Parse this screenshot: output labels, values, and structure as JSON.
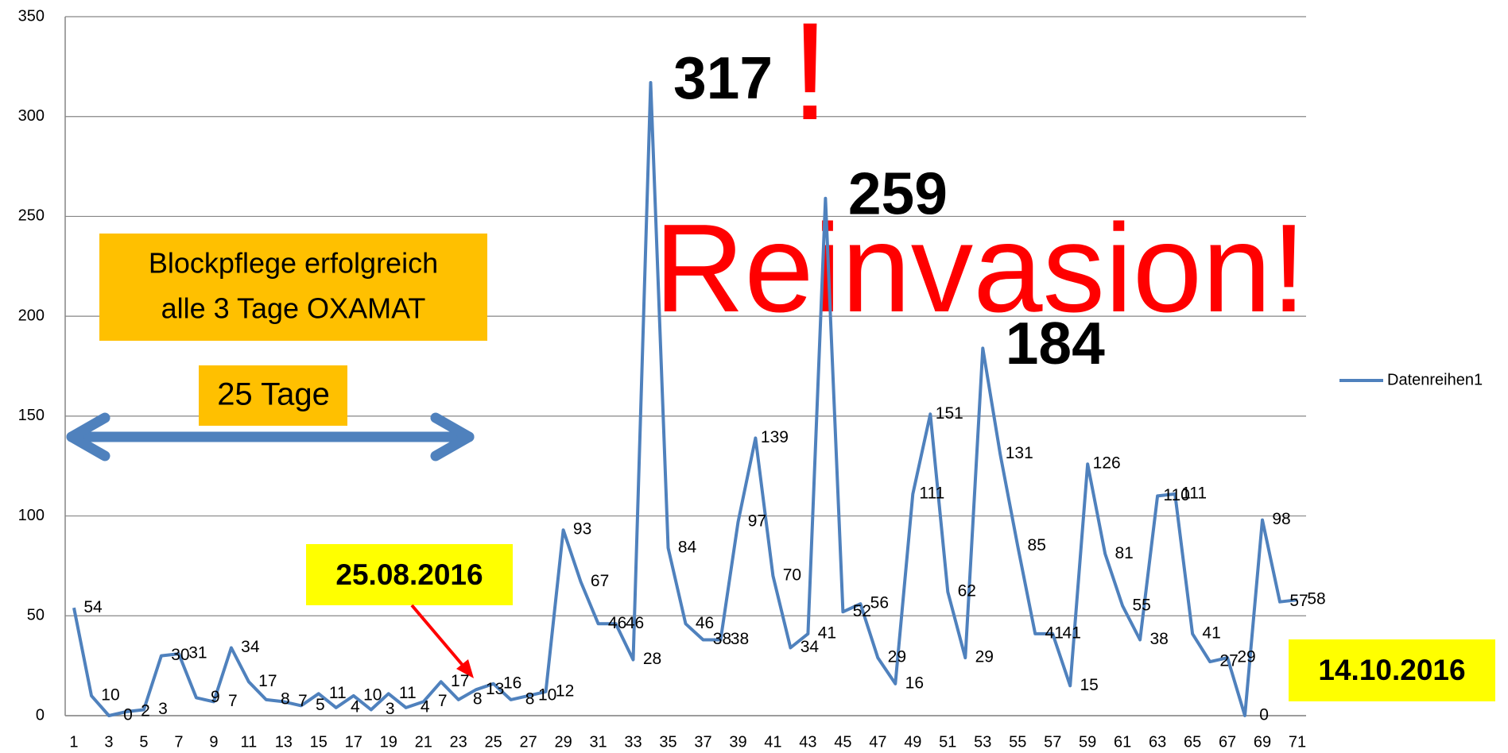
{
  "chart_data": {
    "type": "line",
    "categories": [
      "1",
      null,
      "3",
      null,
      "5",
      null,
      "7",
      null,
      "9",
      null,
      "11",
      null,
      "13",
      null,
      "15",
      null,
      "17",
      null,
      "19",
      null,
      "21",
      null,
      "23",
      null,
      "25",
      null,
      "27",
      null,
      "29",
      null,
      "31",
      null,
      "33",
      null,
      "35",
      null,
      "37",
      null,
      "39",
      null,
      "41",
      null,
      "43",
      null,
      "45",
      null,
      "47",
      null,
      "49",
      null,
      "51",
      null,
      "53",
      null,
      "55",
      null,
      "57",
      null,
      "59",
      null,
      "61",
      null,
      "63",
      null,
      "65",
      null,
      "67",
      null,
      "69",
      null,
      "71"
    ],
    "series": [
      {
        "name": "Datenreihen1",
        "color": "#4f81bd",
        "values": [
          54,
          10,
          0,
          2,
          3,
          30,
          31,
          9,
          7,
          34,
          17,
          8,
          7,
          5,
          11,
          4,
          10,
          3,
          11,
          4,
          7,
          17,
          8,
          13,
          16,
          8,
          10,
          12,
          93,
          67,
          46,
          46,
          28,
          317,
          84,
          46,
          38,
          38,
          97,
          139,
          70,
          34,
          41,
          259,
          52,
          56,
          29,
          16,
          111,
          151,
          62,
          29,
          184,
          131,
          85,
          41,
          41,
          15,
          126,
          81,
          55,
          38,
          110,
          111,
          41,
          27,
          29,
          0,
          98,
          57,
          58
        ]
      }
    ],
    "ylim": [
      0,
      350
    ],
    "yticks": [
      0,
      50,
      100,
      150,
      200,
      250,
      300,
      350
    ],
    "grid": true,
    "legend": "right",
    "annotations": [
      "Blockpflege erfolgreich",
      "alle 3 Tage OXAMAT",
      "25 Tage",
      "25.08.2016",
      "14.10.2016",
      "Reinvasion!",
      "!"
    ]
  }
}
